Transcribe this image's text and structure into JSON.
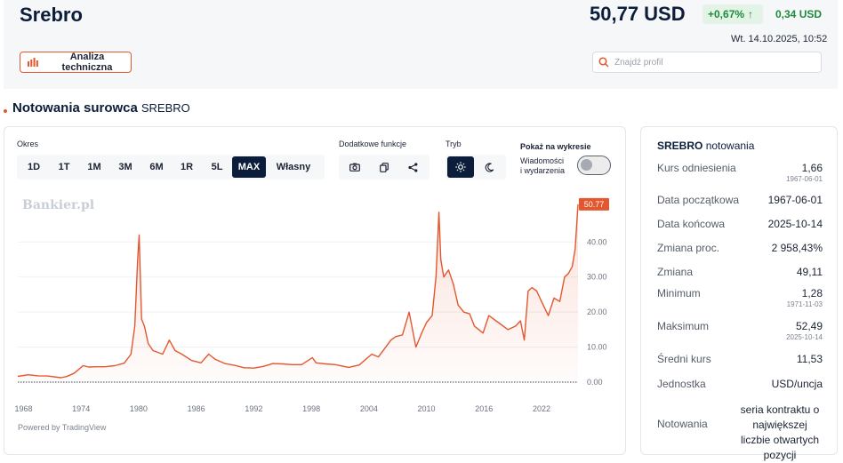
{
  "header": {
    "title": "Srebro",
    "price": "50,77 USD",
    "change_pct": "+0,67%",
    "change_abs": "0,34 USD",
    "datetime": "Wt. 14.10.2025, 10:52",
    "ta_button": "Analiza techniczna",
    "search_placeholder": "Znajdź profil"
  },
  "section": {
    "title": "Notowania surowca",
    "subtitle": "SREBRO"
  },
  "toolbar": {
    "period_label": "Okres",
    "periods": [
      "1D",
      "1T",
      "1M",
      "3M",
      "6M",
      "1R",
      "5L",
      "MAX",
      "Własny"
    ],
    "active_period": "MAX",
    "extra_label": "Dodatkowe funkcje",
    "mode_label": "Tryb",
    "show_label": "Pokaż na wykresie",
    "news_label_1": "Wiadomości",
    "news_label_2": "i wydarzenia"
  },
  "chart_data": {
    "type": "area",
    "watermark": "Bankier.pl",
    "last_value_label": "50.77",
    "x_ticks": [
      "1968",
      "1974",
      "1980",
      "1986",
      "1992",
      "1998",
      "2004",
      "2010",
      "2016",
      "2022"
    ],
    "y_ticks": [
      "0.00",
      "10.00",
      "20.00",
      "30.00",
      "40.00"
    ],
    "ylim": [
      0,
      52
    ],
    "xlim": [
      1967.4,
      2025.8
    ],
    "series": [
      {
        "x": [
          1967.4,
          1968.5,
          1969.5,
          1970.5,
          1971.9,
          1972.5,
          1973.3,
          1974.2,
          1974.8,
          1975.5,
          1976.5,
          1977.5,
          1978.5,
          1979.2,
          1979.6,
          1979.9,
          1980.05,
          1980.3,
          1980.6,
          1981.0,
          1981.5,
          1982.5,
          1983.2,
          1983.8,
          1984.5,
          1985.5,
          1986.5,
          1987.3,
          1988.0,
          1989.0,
          1990.0,
          1991.0,
          1992.0,
          1993.0,
          1994.0,
          1995.0,
          1996.0,
          1997.0,
          1998.1,
          1998.5,
          1999.5,
          2000.5,
          2001.9,
          2003.0,
          2004.3,
          2005.0,
          2006.3,
          2006.8,
          2007.5,
          2008.2,
          2008.9,
          2009.5,
          2010.0,
          2010.6,
          2011.0,
          2011.3,
          2011.5,
          2011.8,
          2012.3,
          2012.8,
          2013.3,
          2013.9,
          2014.5,
          2015.0,
          2015.9,
          2016.5,
          2017.5,
          2018.5,
          2019.3,
          2019.8,
          2020.2,
          2020.6,
          2021.0,
          2021.5,
          2022.0,
          2022.7,
          2023.3,
          2023.9,
          2024.4,
          2024.8,
          2025.2,
          2025.5,
          2025.8
        ],
        "y": [
          1.66,
          2.1,
          1.8,
          1.75,
          1.28,
          1.6,
          2.6,
          4.7,
          4.3,
          4.4,
          4.4,
          4.7,
          5.4,
          8.0,
          16.0,
          35.0,
          42.0,
          18.0,
          16.0,
          11.0,
          9.0,
          8.0,
          12.0,
          9.0,
          8.0,
          6.2,
          5.5,
          8.0,
          6.5,
          5.3,
          4.8,
          4.1,
          4.0,
          4.5,
          5.3,
          5.2,
          5.0,
          5.0,
          7.0,
          5.5,
          5.2,
          5.0,
          4.2,
          4.9,
          8.0,
          7.2,
          12.0,
          13.0,
          13.5,
          20.0,
          10.0,
          14.0,
          17.0,
          19.0,
          30.0,
          48.5,
          35.0,
          30.0,
          32.0,
          28.0,
          22.0,
          20.0,
          19.5,
          16.0,
          14.0,
          19.0,
          17.0,
          15.0,
          16.0,
          17.5,
          12.0,
          26.0,
          27.0,
          26.0,
          23.0,
          19.0,
          24.0,
          23.0,
          30.0,
          31.0,
          33.0,
          38.0,
          50.77
        ]
      }
    ]
  },
  "footer": {
    "powered": "Powered by TradingView"
  },
  "sidebar": {
    "title_bold": "SREBRO",
    "title_rest": "notowania",
    "rows": [
      {
        "k": "Kurs odniesienia",
        "v": "1,66",
        "s": "1967-06-01"
      },
      {
        "k": "Data początkowa",
        "v": "1967-06-01"
      },
      {
        "k": "Data końcowa",
        "v": "2025-10-14"
      },
      {
        "k": "Zmiana proc.",
        "v": "2 958,43%"
      },
      {
        "k": "Zmiana",
        "v": "49,11"
      },
      {
        "k": "Minimum",
        "v": "1,28",
        "s": "1971-11-03"
      },
      {
        "k": "Maksimum",
        "v": "52,49",
        "s": "2025-10-14"
      },
      {
        "k": "Średni kurs",
        "v": "11,53"
      },
      {
        "k": "Jednostka",
        "v": "USD/uncja"
      },
      {
        "k": "Notowania",
        "v": "seria kontraktu o największej liczbie otwartych pozycji"
      }
    ]
  },
  "colors": {
    "accent": "#e4572e",
    "navy": "#0b1d3a",
    "green": "#1e8a3c"
  }
}
